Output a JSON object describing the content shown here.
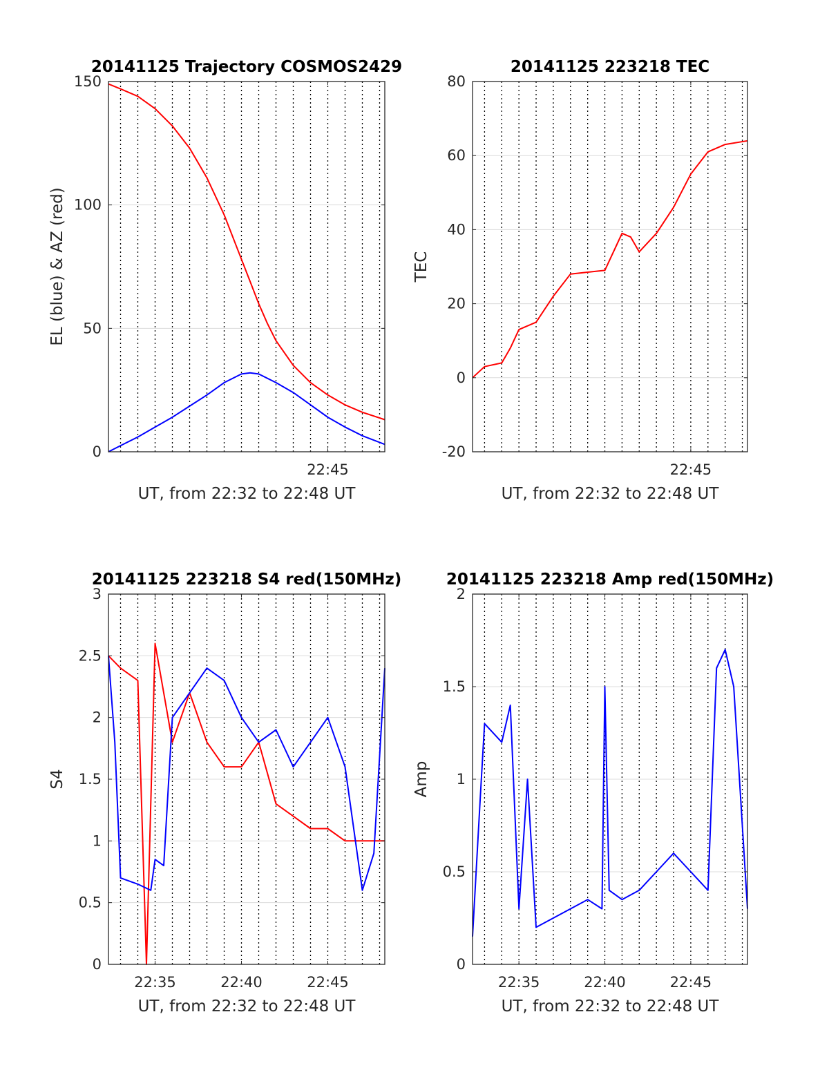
{
  "chart_data": [
    {
      "type": "line",
      "title": "20141125 Trajectory COSMOS2429",
      "xlabel": "UT, from 22:32 to 22:48 UT",
      "ylabel": "EL (blue) & AZ (red)",
      "xlim": [
        "22:32:18",
        "22:48:18"
      ],
      "ylim": [
        0,
        150
      ],
      "yticks": [
        0,
        50,
        100,
        150
      ],
      "xticks": [
        {
          "t": "22:45",
          "label": "22:45"
        }
      ],
      "grid": true,
      "series": [
        {
          "name": "AZ",
          "color": "#ff0000",
          "x": [
            "22:32:18",
            "22:33:00",
            "22:34:00",
            "22:35:00",
            "22:36:00",
            "22:37:00",
            "22:38:00",
            "22:39:00",
            "22:40:00",
            "22:40:30",
            "22:41:00",
            "22:41:30",
            "22:42:00",
            "22:43:00",
            "22:44:00",
            "22:45:00",
            "22:46:00",
            "22:47:00",
            "22:48:18"
          ],
          "y": [
            149,
            147,
            144,
            139,
            132,
            123,
            111,
            96,
            78,
            69,
            60,
            52,
            45,
            35,
            28,
            23,
            19,
            16,
            13
          ]
        },
        {
          "name": "EL",
          "color": "#0000ff",
          "x": [
            "22:32:18",
            "22:33:00",
            "22:34:00",
            "22:35:00",
            "22:36:00",
            "22:37:00",
            "22:38:00",
            "22:39:00",
            "22:40:00",
            "22:40:30",
            "22:41:00",
            "22:42:00",
            "22:43:00",
            "22:44:00",
            "22:45:00",
            "22:46:00",
            "22:47:00",
            "22:48:18"
          ],
          "y": [
            0,
            2.5,
            6,
            10,
            14,
            18.5,
            23,
            28,
            31.5,
            32,
            31.5,
            28,
            24,
            19,
            14,
            10,
            6.5,
            3
          ]
        }
      ]
    },
    {
      "type": "line",
      "title": "20141125 223218 TEC",
      "xlabel": "UT, from 22:32 to 22:48 UT",
      "ylabel": "TEC",
      "xlim": [
        "22:32:18",
        "22:48:18"
      ],
      "ylim": [
        -20,
        80
      ],
      "yticks": [
        -20,
        0,
        20,
        40,
        60,
        80
      ],
      "xticks": [
        {
          "t": "22:45",
          "label": "22:45"
        }
      ],
      "grid": true,
      "series": [
        {
          "color": "#ff0000",
          "x": [
            "22:32:18",
            "22:33:00",
            "22:34:00",
            "22:34:30",
            "22:35:00",
            "22:36:00",
            "22:37:00",
            "22:38:00",
            "22:39:00",
            "22:40:00",
            "22:40:30",
            "22:41:00",
            "22:41:30",
            "22:42:00",
            "22:43:00",
            "22:44:00",
            "22:45:00",
            "22:46:00",
            "22:47:00",
            "22:48:18"
          ],
          "y": [
            0,
            3,
            4,
            8,
            13,
            15,
            22,
            28,
            28.5,
            29,
            34,
            39,
            38,
            34,
            39,
            46,
            55,
            61,
            63,
            64
          ]
        }
      ]
    },
    {
      "type": "line",
      "title": "20141125 223218 S4 red(150MHz)",
      "xlabel": "UT, from 22:32 to 22:48 UT",
      "ylabel": "S4",
      "xlim": [
        "22:32:18",
        "22:48:18"
      ],
      "ylim": [
        0,
        3
      ],
      "yticks": [
        0,
        0.5,
        1,
        1.5,
        2,
        2.5,
        3
      ],
      "xticks": [
        {
          "t": "22:35",
          "label": "22:35"
        },
        {
          "t": "22:40",
          "label": "22:40"
        },
        {
          "t": "22:45",
          "label": "22:45"
        }
      ],
      "grid": true,
      "series": [
        {
          "color": "#ff0000",
          "x": [
            "22:32:18",
            "22:33:00",
            "22:34:00",
            "22:34:30",
            "22:35:00",
            "22:36:00",
            "22:37:00",
            "22:38:00",
            "22:39:00",
            "22:40:00",
            "22:41:00",
            "22:42:00",
            "22:43:00",
            "22:44:00",
            "22:45:00",
            "22:46:00",
            "22:47:00",
            "22:48:18"
          ],
          "y": [
            2.5,
            2.4,
            2.3,
            0,
            2.6,
            1.8,
            2.2,
            1.8,
            1.6,
            1.6,
            1.8,
            1.3,
            1.2,
            1.1,
            1.1,
            1.0,
            1.0,
            1.0
          ]
        },
        {
          "color": "#0000ff",
          "x": [
            "22:32:18",
            "22:32:40",
            "22:33:00",
            "22:34:00",
            "22:34:45",
            "22:35:00",
            "22:35:30",
            "22:36:00",
            "22:37:00",
            "22:38:00",
            "22:39:00",
            "22:40:00",
            "22:41:00",
            "22:42:00",
            "22:43:00",
            "22:44:00",
            "22:45:00",
            "22:46:00",
            "22:47:00",
            "22:47:40",
            "22:48:18"
          ],
          "y": [
            2.5,
            1.8,
            0.7,
            0.65,
            0.6,
            0.85,
            0.8,
            2.0,
            2.2,
            2.4,
            2.3,
            2.0,
            1.8,
            1.9,
            1.6,
            1.8,
            2.0,
            1.6,
            0.6,
            0.9,
            2.4
          ]
        }
      ]
    },
    {
      "type": "line",
      "title": "20141125 223218 Amp red(150MHz)",
      "xlabel": "UT, from 22:32 to 22:48 UT",
      "ylabel": "Amp",
      "xlim": [
        "22:32:18",
        "22:48:18"
      ],
      "ylim": [
        0,
        2
      ],
      "yticks": [
        0,
        0.5,
        1,
        1.5,
        2
      ],
      "xticks": [
        {
          "t": "22:35",
          "label": "22:35"
        },
        {
          "t": "22:40",
          "label": "22:40"
        },
        {
          "t": "22:45",
          "label": "22:45"
        }
      ],
      "grid": true,
      "series": [
        {
          "color": "#0000ff",
          "x": [
            "22:32:18",
            "22:32:45",
            "22:33:00",
            "22:34:00",
            "22:34:30",
            "22:35:00",
            "22:35:30",
            "22:36:00",
            "22:37:00",
            "22:38:00",
            "22:39:00",
            "22:39:50",
            "22:40:00",
            "22:40:15",
            "22:41:00",
            "22:42:00",
            "22:43:00",
            "22:44:00",
            "22:45:00",
            "22:46:00",
            "22:46:30",
            "22:47:00",
            "22:47:30",
            "22:48:18"
          ],
          "y": [
            0.15,
            0.9,
            1.3,
            1.2,
            1.4,
            0.3,
            1.0,
            0.2,
            0.25,
            0.3,
            0.35,
            0.3,
            1.5,
            0.4,
            0.35,
            0.4,
            0.5,
            0.6,
            0.5,
            0.4,
            1.6,
            1.7,
            1.5,
            0.3
          ]
        }
      ]
    }
  ]
}
